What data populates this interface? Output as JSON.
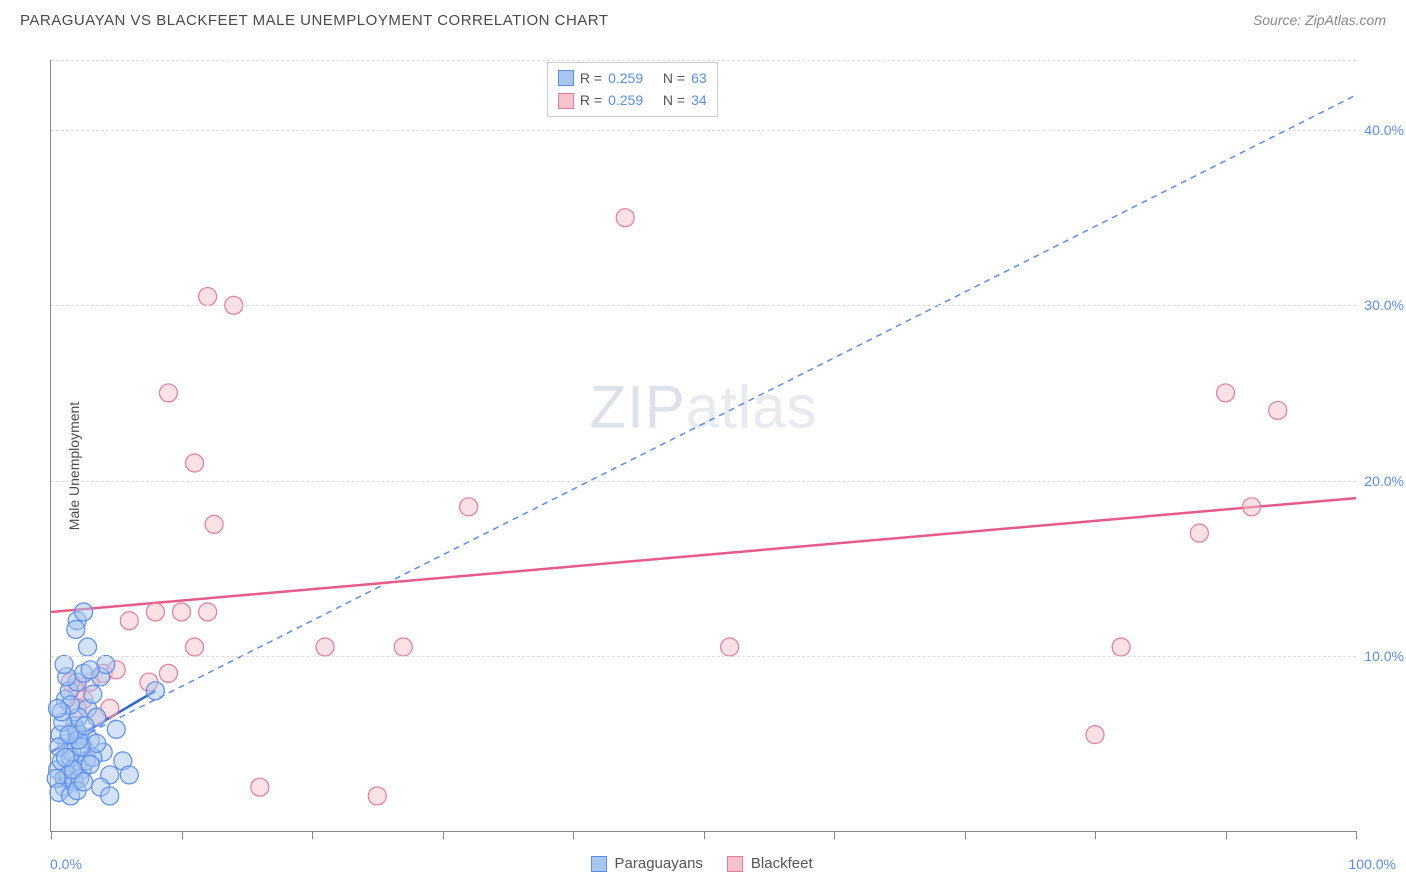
{
  "header": {
    "title": "PARAGUAYAN VS BLACKFEET MALE UNEMPLOYMENT CORRELATION CHART",
    "source": "Source: ZipAtlas.com"
  },
  "chart": {
    "type": "scatter",
    "y_axis_label": "Male Unemployment",
    "watermark": "ZIPatlas",
    "xlim": [
      0,
      100
    ],
    "ylim": [
      0,
      44
    ],
    "x_ticks": [
      0,
      10,
      20,
      30,
      40,
      50,
      60,
      70,
      80,
      90,
      100
    ],
    "x_tick_labels_shown": {
      "0": "0.0%",
      "100": "100.0%"
    },
    "y_gridlines": [
      10,
      20,
      30,
      40,
      44
    ],
    "y_tick_labels": {
      "10": "10.0%",
      "20": "20.0%",
      "30": "30.0%",
      "40": "40.0%"
    },
    "background_color": "#ffffff",
    "grid_color": "#dddddd",
    "axis_color": "#888888",
    "label_color": "#5b8def",
    "marker_radius": 9,
    "marker_opacity": 0.5,
    "series": [
      {
        "name": "Paraguayans",
        "color_fill": "#a8c6f0",
        "color_stroke": "#5b8def",
        "R": "0.259",
        "N": "63",
        "trend": {
          "style": "solid",
          "color": "#2e66d4",
          "width": 2.5,
          "x1": 0,
          "y1": 4.5,
          "x2": 8,
          "y2": 8
        },
        "trend_dashed_ext": {
          "style": "dashed",
          "color": "#5b8def",
          "width": 1.5,
          "x1": 0,
          "y1": 4.5,
          "x2": 100,
          "y2": 42
        },
        "points": [
          [
            0.5,
            3.5
          ],
          [
            0.8,
            4.0
          ],
          [
            1.0,
            3.0
          ],
          [
            1.2,
            5.0
          ],
          [
            1.5,
            4.2
          ],
          [
            1.8,
            6.0
          ],
          [
            2.0,
            3.8
          ],
          [
            2.2,
            5.5
          ],
          [
            2.5,
            4.8
          ],
          [
            2.8,
            7.0
          ],
          [
            1.0,
            2.5
          ],
          [
            1.3,
            3.2
          ],
          [
            1.6,
            4.5
          ],
          [
            1.9,
            5.8
          ],
          [
            2.1,
            6.5
          ],
          [
            2.4,
            3.5
          ],
          [
            2.7,
            4.0
          ],
          [
            3.0,
            5.2
          ],
          [
            1.1,
            7.5
          ],
          [
            1.4,
            8.0
          ],
          [
            2.0,
            8.5
          ],
          [
            2.5,
            9.0
          ],
          [
            3.2,
            7.8
          ],
          [
            1.8,
            2.8
          ],
          [
            2.2,
            3.0
          ],
          [
            0.7,
            5.5
          ],
          [
            0.9,
            6.2
          ],
          [
            1.5,
            7.2
          ],
          [
            3.5,
            6.5
          ],
          [
            4.0,
            4.5
          ],
          [
            4.5,
            3.2
          ],
          [
            5.0,
            5.8
          ],
          [
            3.8,
            8.8
          ],
          [
            4.2,
            9.5
          ],
          [
            2.0,
            12.0
          ],
          [
            2.5,
            12.5
          ],
          [
            3.0,
            9.2
          ],
          [
            1.2,
            8.8
          ],
          [
            0.6,
            4.8
          ],
          [
            0.8,
            6.8
          ],
          [
            1.0,
            9.5
          ],
          [
            2.8,
            10.5
          ],
          [
            3.2,
            4.2
          ],
          [
            3.5,
            5.0
          ],
          [
            1.7,
            3.5
          ],
          [
            2.3,
            4.8
          ],
          [
            0.5,
            7.0
          ],
          [
            1.9,
            11.5
          ],
          [
            2.1,
            5.2
          ],
          [
            2.6,
            6.0
          ],
          [
            0.4,
            3.0
          ],
          [
            0.6,
            2.2
          ],
          [
            1.1,
            4.2
          ],
          [
            1.4,
            5.5
          ],
          [
            3.0,
            3.8
          ],
          [
            3.8,
            2.5
          ],
          [
            4.5,
            2.0
          ],
          [
            5.5,
            4.0
          ],
          [
            6.0,
            3.2
          ],
          [
            1.5,
            2.0
          ],
          [
            2.0,
            2.3
          ],
          [
            2.5,
            2.8
          ],
          [
            8.0,
            8.0
          ]
        ]
      },
      {
        "name": "Blackfeet",
        "color_fill": "#f5c3ce",
        "color_stroke": "#e87a9a",
        "R": "0.259",
        "N": "34",
        "trend": {
          "style": "solid",
          "color": "#e85a8a",
          "width": 2.5,
          "x1": 0,
          "y1": 12.5,
          "x2": 100,
          "y2": 19
        },
        "points": [
          [
            2.0,
            8.0
          ],
          [
            3.0,
            8.5
          ],
          [
            4.0,
            9.0
          ],
          [
            5.0,
            9.2
          ],
          [
            6.0,
            12.0
          ],
          [
            7.5,
            8.5
          ],
          [
            8.0,
            12.5
          ],
          [
            9.0,
            9.0
          ],
          [
            10.0,
            12.5
          ],
          [
            11.0,
            10.5
          ],
          [
            12.0,
            12.5
          ],
          [
            12.5,
            17.5
          ],
          [
            11.0,
            21.0
          ],
          [
            9.0,
            25.0
          ],
          [
            12.0,
            30.5
          ],
          [
            14.0,
            30.0
          ],
          [
            21.0,
            10.5
          ],
          [
            16.0,
            2.5
          ],
          [
            25.0,
            2.0
          ],
          [
            27.0,
            10.5
          ],
          [
            32.0,
            18.5
          ],
          [
            44.0,
            35.0
          ],
          [
            52.0,
            10.5
          ],
          [
            80.0,
            5.5
          ],
          [
            82.0,
            10.5
          ],
          [
            88.0,
            17.0
          ],
          [
            92.0,
            18.5
          ],
          [
            90.0,
            25.0
          ],
          [
            94.0,
            24.0
          ],
          [
            3.5,
            6.5
          ],
          [
            4.5,
            7.0
          ],
          [
            2.5,
            7.5
          ],
          [
            1.5,
            8.5
          ],
          [
            2.0,
            7.0
          ]
        ]
      }
    ],
    "legend_top": {
      "r_label": "R =",
      "n_label": "N ="
    },
    "legend_bottom": {
      "items": [
        "Paraguayans",
        "Blackfeet"
      ]
    }
  }
}
